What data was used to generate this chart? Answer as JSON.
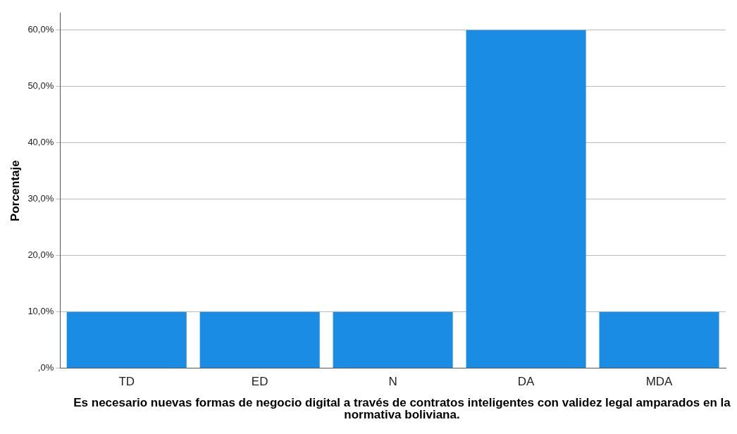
{
  "chart_data": {
    "type": "bar",
    "categories": [
      "TD",
      "ED",
      "N",
      "DA",
      "MDA"
    ],
    "values": [
      10,
      10,
      10,
      60,
      10
    ],
    "color": "#1a8ce4",
    "ylabel": "Porcentaje",
    "xlabel": "Es necesario nuevas formas de negocio digital a través de contratos inteligentes con validez legal amparados en la normativa boliviana.",
    "ylim": [
      0,
      63
    ],
    "yticks": [
      {
        "value": 0,
        "label": ",0%"
      },
      {
        "value": 10,
        "label": "10,0%"
      },
      {
        "value": 20,
        "label": "20,0%"
      },
      {
        "value": 30,
        "label": "30,0%"
      },
      {
        "value": 40,
        "label": "40,0%"
      },
      {
        "value": 50,
        "label": "50,0%"
      },
      {
        "value": 60,
        "label": "60,0%"
      }
    ],
    "grid": "y",
    "legend": false
  }
}
